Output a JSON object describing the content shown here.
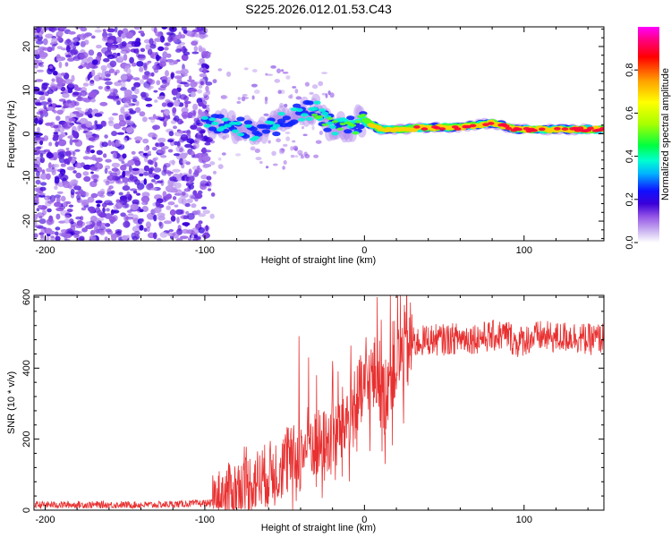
{
  "title": "S225.2026.012.01.53.C43",
  "spectrogram": {
    "type": "heatmap",
    "xlabel": "Height of straight line (km)",
    "ylabel": "Frequency (Hz)",
    "xlim": [
      -207,
      150
    ],
    "ylim": [
      -24.5,
      24.5
    ],
    "xticks": [
      -200,
      -100,
      0,
      100
    ],
    "yticks": [
      -20,
      -10,
      0,
      10,
      20
    ],
    "colorbar": {
      "label": "Normalized spectral amplitude",
      "range": [
        0,
        1
      ],
      "ticks": [
        0,
        0.2,
        0.4,
        0.6,
        0.8
      ],
      "colors": [
        "#ffffff",
        "#d8c8f4",
        "#9455e6",
        "#3a00d8",
        "#1010ff",
        "#00b4ff",
        "#00ffd0",
        "#00ff40",
        "#a8ff00",
        "#ffff00",
        "#ffa000",
        "#ff0000",
        "#ff0080",
        "#ff00ff"
      ]
    },
    "noise_region_x": [
      -207,
      -97
    ],
    "signal_track": [
      {
        "x": -100,
        "freq": 2.0,
        "amp": 0.35
      },
      {
        "x": -90,
        "freq": 2.5,
        "amp": 0.35
      },
      {
        "x": -80,
        "freq": 2.0,
        "amp": 0.3
      },
      {
        "x": -70,
        "freq": 0.5,
        "amp": 0.3
      },
      {
        "x": -60,
        "freq": 1.0,
        "amp": 0.3
      },
      {
        "x": -50,
        "freq": 3.0,
        "amp": 0.3
      },
      {
        "x": -40,
        "freq": 5.0,
        "amp": 0.35
      },
      {
        "x": -30,
        "freq": 5.5,
        "amp": 0.4
      },
      {
        "x": -25,
        "freq": 3.0,
        "amp": 0.4
      },
      {
        "x": -20,
        "freq": 2.0,
        "amp": 0.45
      },
      {
        "x": -10,
        "freq": 1.5,
        "amp": 0.5
      },
      {
        "x": 0,
        "freq": 3.0,
        "amp": 0.55
      },
      {
        "x": 10,
        "freq": 1.0,
        "amp": 0.7
      },
      {
        "x": 20,
        "freq": 1.0,
        "amp": 0.75
      },
      {
        "x": 40,
        "freq": 1.5,
        "amp": 0.8
      },
      {
        "x": 60,
        "freq": 1.5,
        "amp": 0.85
      },
      {
        "x": 80,
        "freq": 2.5,
        "amp": 0.85
      },
      {
        "x": 95,
        "freq": 1.0,
        "amp": 0.8
      },
      {
        "x": 110,
        "freq": 1.0,
        "amp": 0.8
      },
      {
        "x": 130,
        "freq": 1.0,
        "amp": 0.85
      },
      {
        "x": 150,
        "freq": 1.0,
        "amp": 0.85
      }
    ]
  },
  "chart_data": {
    "type": "line",
    "title": "",
    "xlabel": "Height of straight line (km)",
    "ylabel": "SNR (10 * v/v)",
    "xlim": [
      -207,
      150
    ],
    "ylim": [
      0,
      605
    ],
    "xticks": [
      -200,
      -100,
      0,
      100
    ],
    "yticks": [
      0,
      200,
      400,
      600
    ],
    "color": "#e83030",
    "series": [
      {
        "name": "SNR",
        "x": [
          -207,
          -190,
          -170,
          -150,
          -130,
          -110,
          -95,
          -90,
          -80,
          -70,
          -60,
          -50,
          -40,
          -35,
          -30,
          -25,
          -20,
          -15,
          -10,
          -5,
          0,
          5,
          8,
          10,
          12,
          15,
          20,
          25,
          30,
          40,
          50,
          60,
          70,
          80,
          90,
          95,
          100,
          110,
          120,
          130,
          140,
          150
        ],
        "y": [
          15,
          15,
          15,
          15,
          15,
          18,
          20,
          40,
          60,
          80,
          100,
          130,
          150,
          200,
          180,
          180,
          200,
          230,
          260,
          300,
          340,
          370,
          380,
          360,
          300,
          380,
          420,
          450,
          470,
          480,
          480,
          485,
          485,
          490,
          495,
          470,
          480,
          490,
          485,
          490,
          480,
          485
        ]
      }
    ],
    "spikes": [
      {
        "x": -41,
        "y": 490
      },
      {
        "x": -35,
        "y": 430
      },
      {
        "x": -30,
        "y": 380
      },
      {
        "x": -20,
        "y": 420
      },
      {
        "x": 8,
        "y": 600
      },
      {
        "x": 13,
        "y": 130
      }
    ]
  }
}
